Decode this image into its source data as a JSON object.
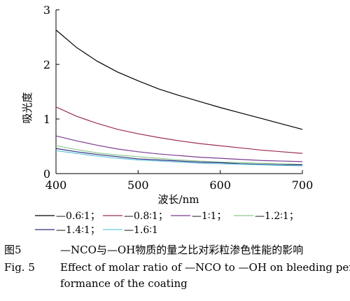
{
  "chart_data": {
    "type": "line",
    "xlabel": "波长/nm",
    "ylabel": "吸光度",
    "xlim": [
      400,
      700
    ],
    "ylim": [
      0,
      3
    ],
    "xticks": [
      400,
      500,
      600,
      700
    ],
    "yticks": [
      0,
      1,
      2,
      3
    ],
    "grid": false,
    "legend_position": "bottom",
    "x": [
      400,
      425,
      450,
      475,
      500,
      525,
      550,
      575,
      600,
      625,
      650,
      675,
      700
    ],
    "series": [
      {
        "name": "—0.6∶1",
        "color": "#000000",
        "values": [
          2.63,
          2.31,
          2.06,
          1.86,
          1.7,
          1.55,
          1.43,
          1.32,
          1.21,
          1.11,
          1.01,
          0.91,
          0.81
        ]
      },
      {
        "name": "—0.8∶1",
        "color": "#9b2f4e",
        "values": [
          1.22,
          1.05,
          0.92,
          0.81,
          0.73,
          0.66,
          0.6,
          0.55,
          0.51,
          0.47,
          0.43,
          0.4,
          0.37
        ]
      },
      {
        "name": "—1∶1",
        "color": "#7b3b91",
        "values": [
          0.69,
          0.6,
          0.52,
          0.45,
          0.4,
          0.36,
          0.33,
          0.3,
          0.28,
          0.26,
          0.24,
          0.23,
          0.22
        ]
      },
      {
        "name": "—1.2∶1",
        "color": "#8fc98f",
        "values": [
          0.51,
          0.44,
          0.38,
          0.34,
          0.31,
          0.28,
          0.25,
          0.23,
          0.21,
          0.2,
          0.19,
          0.18,
          0.17
        ]
      },
      {
        "name": "—1.4∶1",
        "color": "#2c2f7e",
        "values": [
          0.46,
          0.4,
          0.35,
          0.31,
          0.27,
          0.25,
          0.23,
          0.21,
          0.2,
          0.18,
          0.17,
          0.16,
          0.16
        ]
      },
      {
        "name": "—1.6∶1",
        "color": "#66c6de",
        "values": [
          0.42,
          0.37,
          0.32,
          0.28,
          0.25,
          0.23,
          0.21,
          0.19,
          0.18,
          0.17,
          0.16,
          0.15,
          0.14
        ]
      }
    ]
  },
  "caption": {
    "cn_number": "图5",
    "cn_text": "—NCO与—OH物质的量之比对彩粒渗色性能的影响",
    "en_number": "Fig. 5",
    "en_text_line1": "Effect of molar ratio of —NCO to —OH on bleeding per-",
    "en_text_line2": "formance of the coating"
  },
  "legend_separator": "；"
}
